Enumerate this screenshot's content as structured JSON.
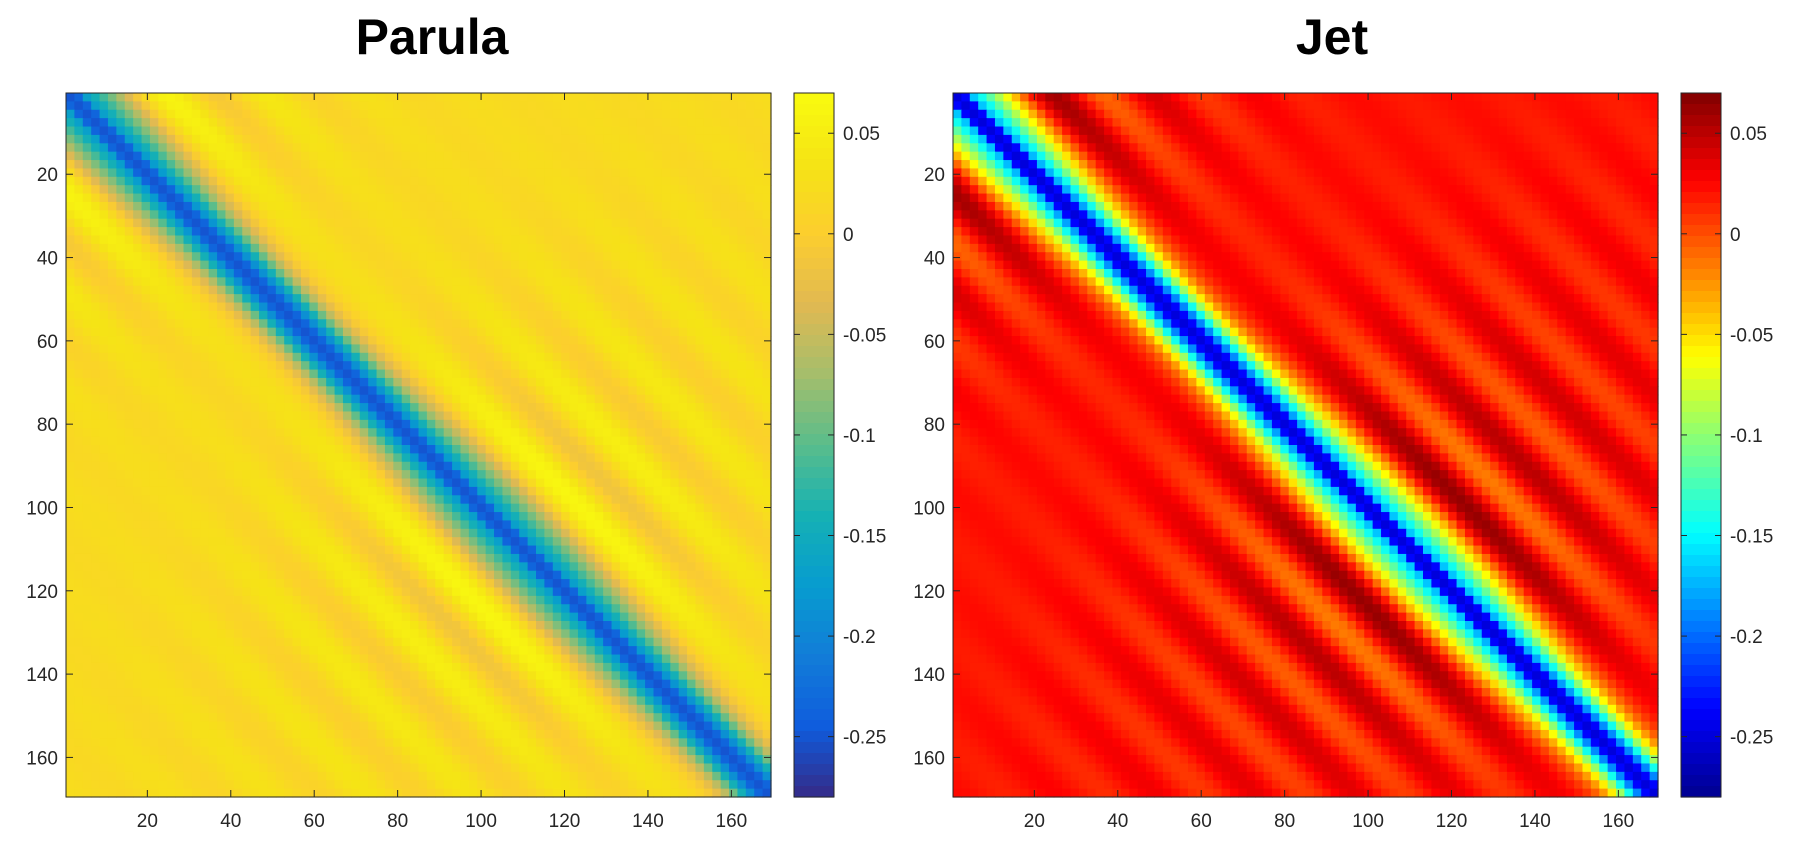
{
  "chart_data": [
    {
      "type": "heatmap",
      "title": "Parula",
      "colormap": "parula",
      "x_ticks": [
        20,
        40,
        60,
        80,
        100,
        120,
        140,
        160
      ],
      "y_ticks": [
        20,
        40,
        60,
        80,
        100,
        120,
        140,
        160
      ],
      "xlim": [
        0.5,
        169.5
      ],
      "ylim": [
        0.5,
        169.5
      ],
      "y_direction": "reversed",
      "matrix_size": [
        169,
        169
      ],
      "clim": [
        -0.28,
        0.07
      ],
      "colorbar_ticks": [
        0.05,
        0,
        -0.05,
        -0.1,
        -0.15,
        -0.2,
        -0.25
      ],
      "colorbar_labels": [
        "0.05",
        "0",
        "-0.05",
        "-0.1",
        "-0.15",
        "-0.2",
        "-0.25"
      ],
      "pattern": {
        "diagonal_value": -0.27,
        "off_diagonal_band_width": 6,
        "oscillation_period": 24,
        "oscillation_amplitude": 0.06,
        "background_value": 0.02
      }
    },
    {
      "type": "heatmap",
      "title": "Jet",
      "colormap": "jet",
      "x_ticks": [
        20,
        40,
        60,
        80,
        100,
        120,
        140,
        160
      ],
      "y_ticks": [
        20,
        40,
        60,
        80,
        100,
        120,
        140,
        160
      ],
      "xlim": [
        0.5,
        169.5
      ],
      "ylim": [
        0.5,
        169.5
      ],
      "y_direction": "reversed",
      "matrix_size": [
        169,
        169
      ],
      "clim": [
        -0.28,
        0.07
      ],
      "colorbar_ticks": [
        0.05,
        0,
        -0.05,
        -0.1,
        -0.15,
        -0.2,
        -0.25
      ],
      "colorbar_labels": [
        "0.05",
        "0",
        "-0.05",
        "-0.1",
        "-0.15",
        "-0.2",
        "-0.25"
      ],
      "pattern": {
        "diagonal_value": -0.27,
        "off_diagonal_band_width": 6,
        "oscillation_period": 24,
        "oscillation_amplitude": 0.06,
        "background_value": 0.02
      }
    }
  ]
}
